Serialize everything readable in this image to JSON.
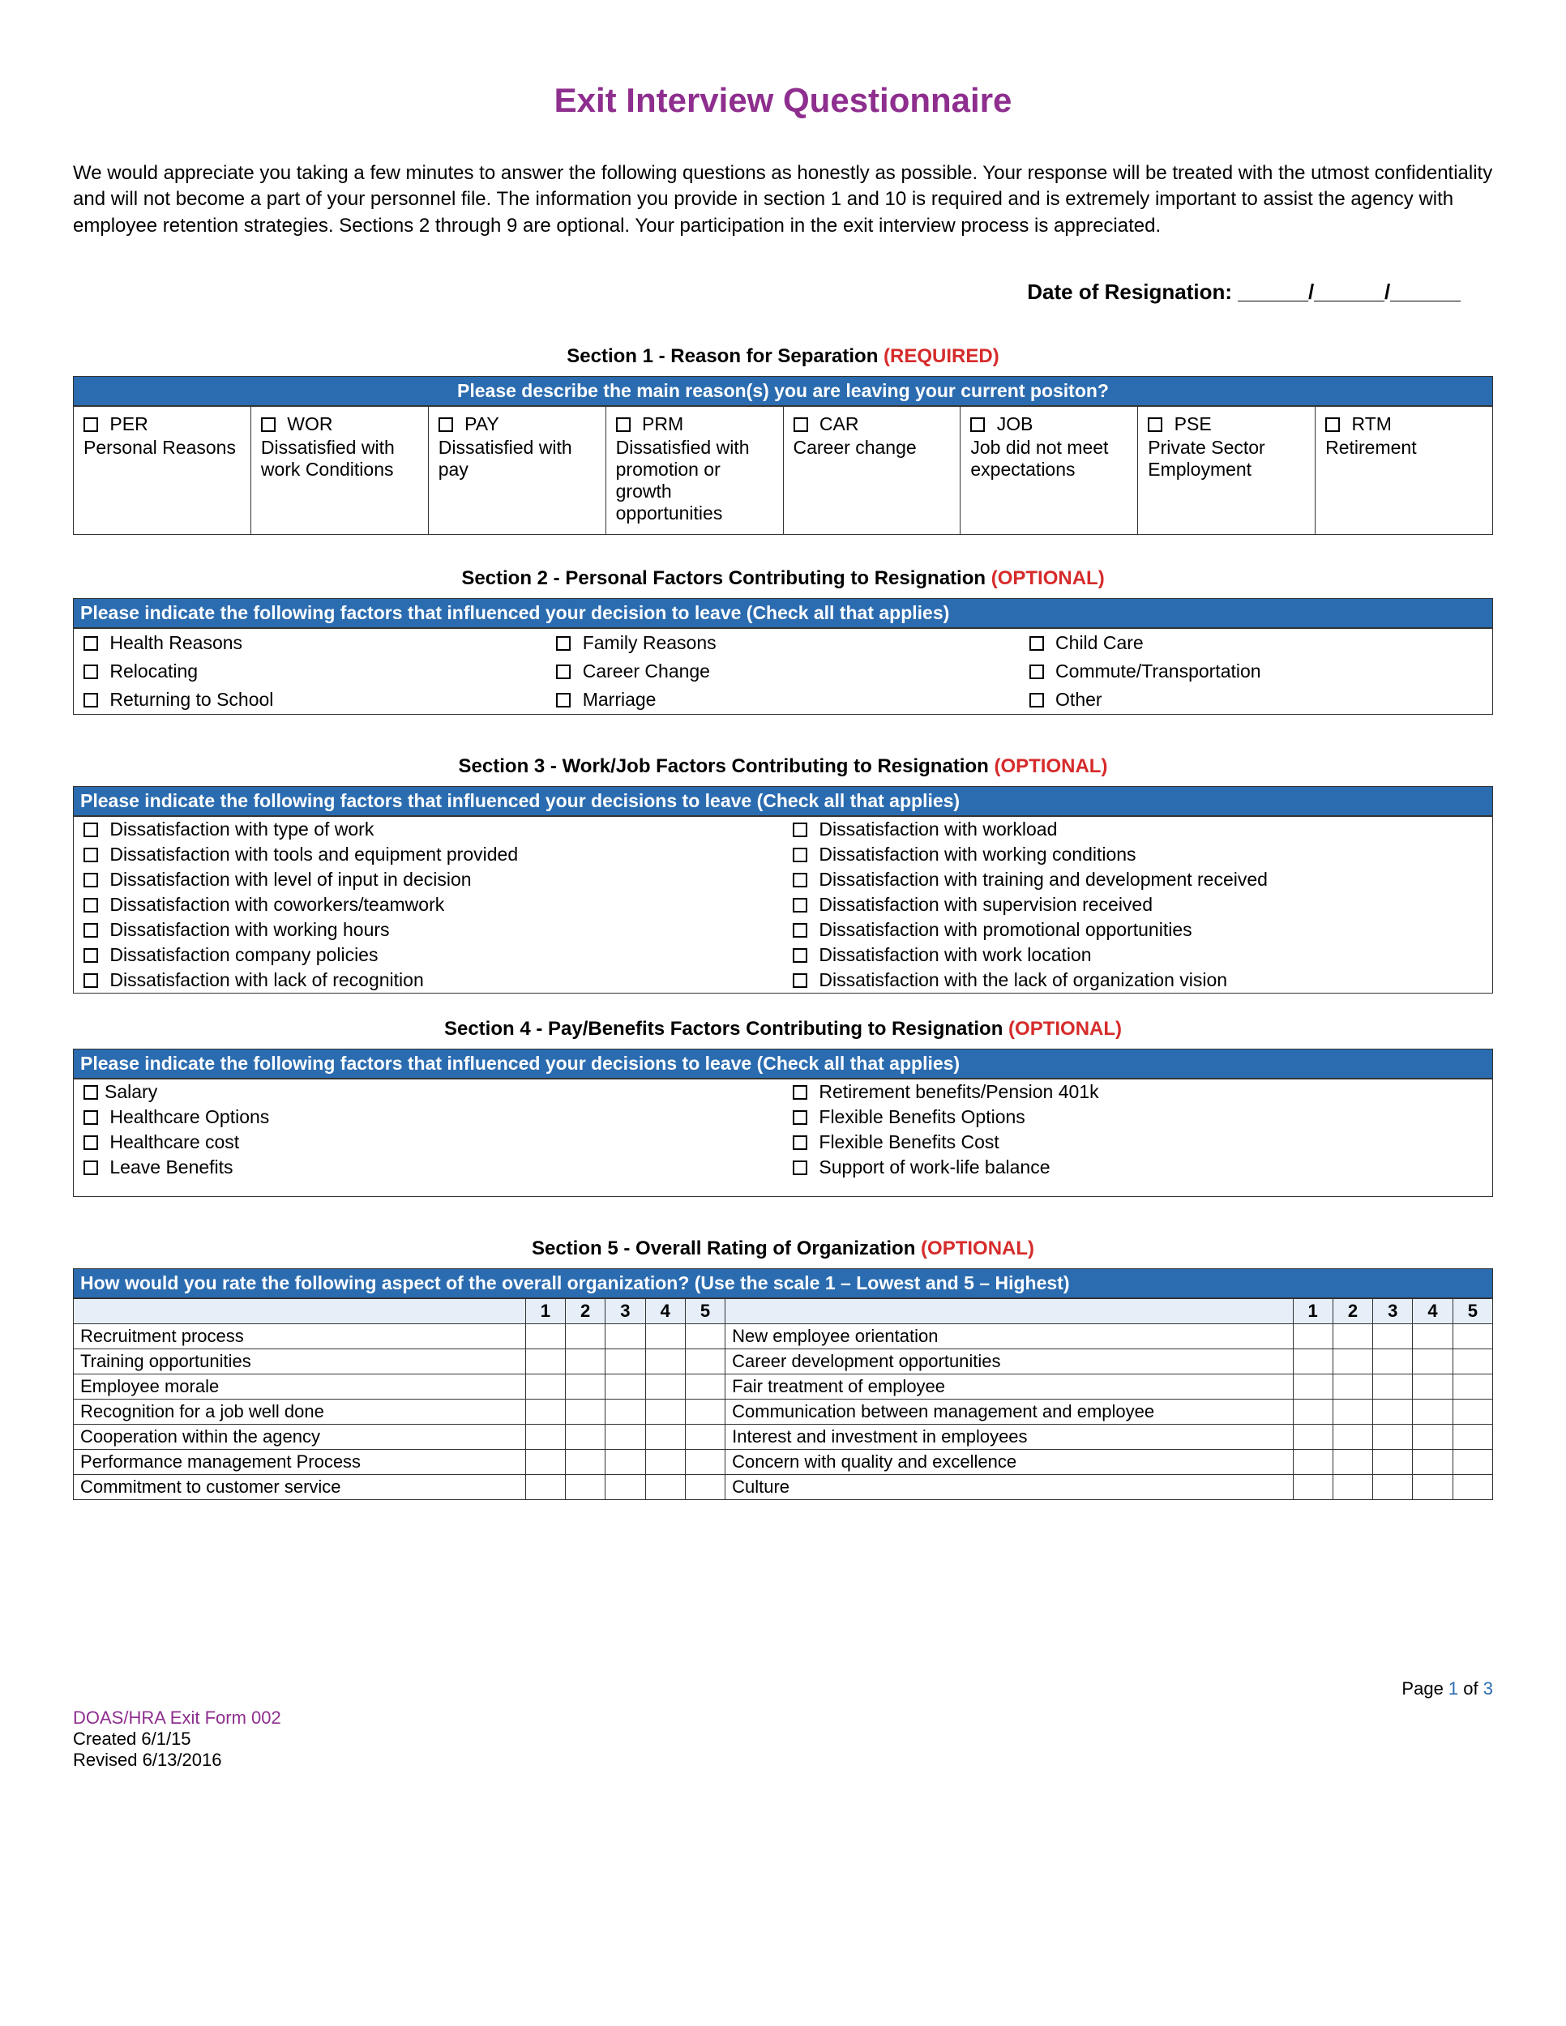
{
  "title": "Exit Interview Questionnaire",
  "intro": "We would appreciate you taking a few minutes to answer the following questions as honestly as possible. Your response will be treated with the utmost confidentiality and will not become a part of your personnel file. The information you provide in section 1 and 10 is required and is extremely important to assist the agency with employee retention strategies. Sections 2 through 9 are optional. Your participation in the exit interview process is appreciated.",
  "date_label": "Date of Resignation: ______/______/______",
  "colors": {
    "title": "#8e2e8e",
    "header_bg": "#2b6cb0",
    "required": "#d62b2b",
    "page_link": "#2b6cb0"
  },
  "section1": {
    "heading_prefix": "Section 1 - Reason for Separation ",
    "heading_tag": "(REQUIRED)",
    "banner": "Please describe the main reason(s) you are leaving your current positon?",
    "options": [
      {
        "code": "PER",
        "label": "Personal Reasons"
      },
      {
        "code": "WOR",
        "label": "Dissatisfied with work Conditions"
      },
      {
        "code": "PAY",
        "label": "Dissatisfied with pay"
      },
      {
        "code": "PRM",
        "label": "Dissatisfied with promotion or growth opportunities"
      },
      {
        "code": "CAR",
        "label": "Career change"
      },
      {
        "code": "JOB",
        "label": "Job did not meet expectations"
      },
      {
        "code": "PSE",
        "label": "Private Sector Employment"
      },
      {
        "code": "RTM",
        "label": "Retirement"
      }
    ]
  },
  "section2": {
    "heading_prefix": "Section 2 - Personal Factors Contributing to Resignation ",
    "heading_tag": "(OPTIONAL)",
    "banner": "Please indicate the following factors that influenced your decision to leave (Check all that applies)",
    "options": [
      "Health Reasons",
      "Family Reasons",
      "Child Care",
      "Relocating",
      "Career Change",
      "Commute/Transportation",
      "Returning to School",
      "Marriage",
      "Other"
    ]
  },
  "section3": {
    "heading_prefix": "Section 3 - Work/Job Factors Contributing to Resignation ",
    "heading_tag": "(OPTIONAL)",
    "banner": "Please indicate the following factors that influenced your decisions to leave (Check all that applies)",
    "left": [
      "Dissatisfaction with type of work",
      "Dissatisfaction with tools and equipment provided",
      "Dissatisfaction with level of input in decision",
      "Dissatisfaction with coworkers/teamwork",
      "Dissatisfaction with working hours",
      "Dissatisfaction company policies",
      "Dissatisfaction with lack of recognition"
    ],
    "right": [
      "Dissatisfaction with workload",
      "Dissatisfaction with working conditions",
      "Dissatisfaction with training and development received",
      "Dissatisfaction with supervision received",
      "Dissatisfaction with promotional opportunities",
      "Dissatisfaction with work location",
      "Dissatisfaction with the lack of organization vision"
    ]
  },
  "section4": {
    "heading_prefix": "Section 4 - Pay/Benefits Factors Contributing to Resignation ",
    "heading_tag": "(OPTIONAL)",
    "banner": "Please indicate the following factors that influenced your decisions to leave (Check all that applies)",
    "left": [
      "Salary",
      "Healthcare Options",
      "Healthcare cost",
      "Leave Benefits"
    ],
    "right": [
      "Retirement benefits/Pension 401k",
      "Flexible Benefits Options",
      "Flexible Benefits Cost",
      "Support of work-life balance"
    ]
  },
  "section5": {
    "heading_prefix": "Section 5 - Overall Rating of Organization ",
    "heading_tag": "(OPTIONAL)",
    "banner": "How would you rate the following aspect of the overall organization? (Use the scale 1 – Lowest and 5 – Highest)",
    "scale": [
      "1",
      "2",
      "3",
      "4",
      "5"
    ],
    "left": [
      "Recruitment process",
      "Training opportunities",
      "Employee morale",
      "Recognition for a job well done",
      "Cooperation within the agency",
      "Performance management Process",
      "Commitment to customer service"
    ],
    "right": [
      "New employee orientation",
      "Career development opportunities",
      "Fair treatment of employee",
      "Communication between management and employee",
      "Interest and investment in employees",
      "Concern with quality and excellence",
      "Culture"
    ]
  },
  "footer": {
    "page": "Page 1 of 3",
    "form_id": "DOAS/HRA Exit Form 002",
    "created": "Created 6/1/15",
    "revised": "Revised 6/13/2016"
  }
}
